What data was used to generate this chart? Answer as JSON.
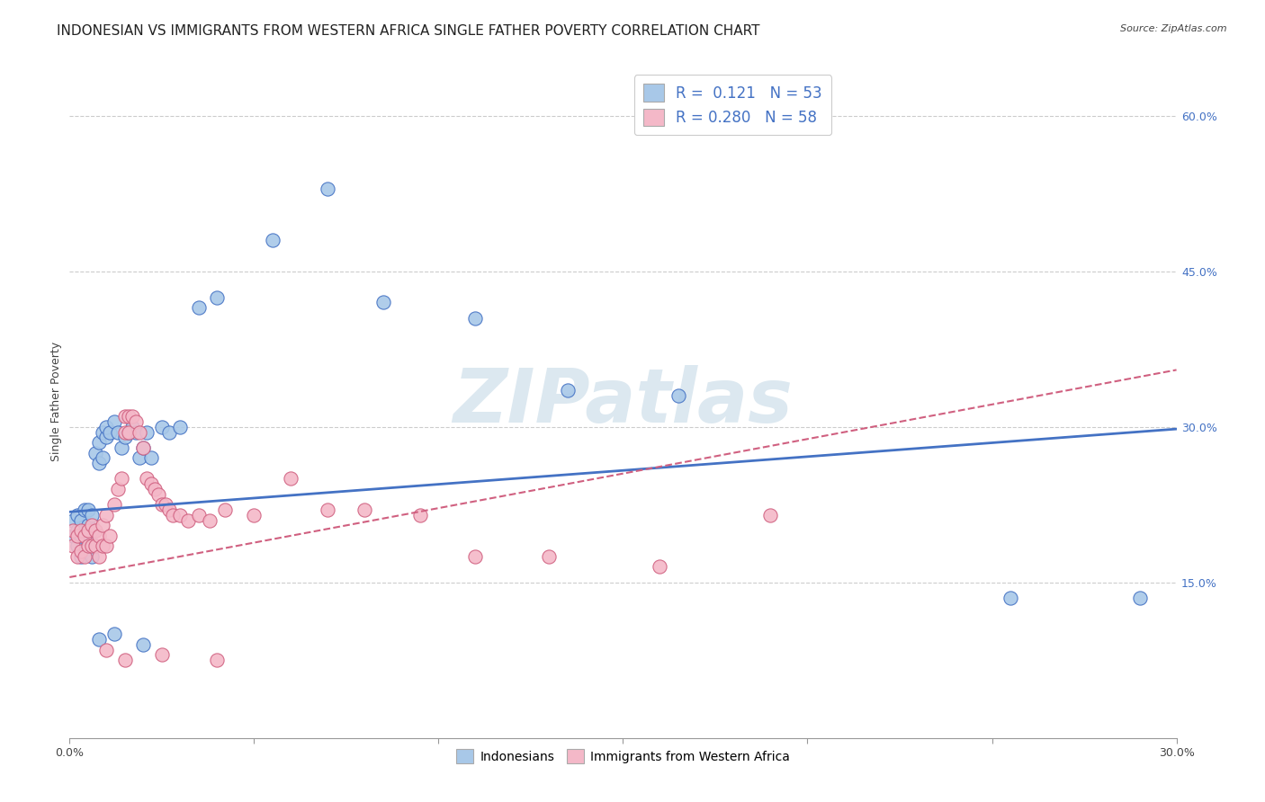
{
  "title": "INDONESIAN VS IMMIGRANTS FROM WESTERN AFRICA SINGLE FATHER POVERTY CORRELATION CHART",
  "source": "Source: ZipAtlas.com",
  "ylabel": "Single Father Poverty",
  "xlim": [
    0.0,
    0.3
  ],
  "ylim": [
    0.0,
    0.65
  ],
  "xticks": [
    0.0,
    0.05,
    0.1,
    0.15,
    0.2,
    0.25,
    0.3
  ],
  "xticklabels": [
    "0.0%",
    "",
    "",
    "",
    "",
    "",
    "30.0%"
  ],
  "yticks_right": [
    0.15,
    0.3,
    0.45,
    0.6
  ],
  "ytick_labels_right": [
    "15.0%",
    "30.0%",
    "45.0%",
    "60.0%"
  ],
  "legend_r1": "0.121",
  "legend_n1": "53",
  "legend_r2": "0.280",
  "legend_n2": "58",
  "color_indonesian": "#a8c8e8",
  "color_western_africa": "#f4b8c8",
  "color_line_indonesian": "#4472c4",
  "color_line_western_africa": "#d06080",
  "indonesian_x": [
    0.001,
    0.001,
    0.002,
    0.002,
    0.002,
    0.003,
    0.003,
    0.003,
    0.004,
    0.004,
    0.004,
    0.005,
    0.005,
    0.005,
    0.006,
    0.006,
    0.006,
    0.007,
    0.007,
    0.008,
    0.008,
    0.009,
    0.009,
    0.01,
    0.01,
    0.011,
    0.012,
    0.013,
    0.014,
    0.015,
    0.016,
    0.017,
    0.018,
    0.019,
    0.02,
    0.021,
    0.022,
    0.025,
    0.027,
    0.03,
    0.035,
    0.04,
    0.055,
    0.07,
    0.085,
    0.11,
    0.135,
    0.165,
    0.255,
    0.29,
    0.008,
    0.012,
    0.02
  ],
  "indonesian_y": [
    0.195,
    0.21,
    0.185,
    0.2,
    0.215,
    0.175,
    0.195,
    0.21,
    0.18,
    0.2,
    0.22,
    0.185,
    0.205,
    0.22,
    0.175,
    0.2,
    0.215,
    0.185,
    0.275,
    0.265,
    0.285,
    0.295,
    0.27,
    0.29,
    0.3,
    0.295,
    0.305,
    0.295,
    0.28,
    0.29,
    0.295,
    0.3,
    0.295,
    0.27,
    0.28,
    0.295,
    0.27,
    0.3,
    0.295,
    0.3,
    0.415,
    0.425,
    0.48,
    0.53,
    0.42,
    0.405,
    0.335,
    0.33,
    0.135,
    0.135,
    0.095,
    0.1,
    0.09
  ],
  "western_africa_x": [
    0.001,
    0.001,
    0.002,
    0.002,
    0.003,
    0.003,
    0.004,
    0.004,
    0.005,
    0.005,
    0.006,
    0.006,
    0.007,
    0.007,
    0.008,
    0.008,
    0.009,
    0.009,
    0.01,
    0.01,
    0.011,
    0.012,
    0.013,
    0.014,
    0.015,
    0.015,
    0.016,
    0.016,
    0.017,
    0.018,
    0.019,
    0.02,
    0.021,
    0.022,
    0.023,
    0.024,
    0.025,
    0.026,
    0.027,
    0.028,
    0.03,
    0.032,
    0.035,
    0.038,
    0.042,
    0.05,
    0.06,
    0.07,
    0.08,
    0.095,
    0.11,
    0.13,
    0.16,
    0.19,
    0.01,
    0.015,
    0.025,
    0.04
  ],
  "western_africa_y": [
    0.185,
    0.2,
    0.175,
    0.195,
    0.18,
    0.2,
    0.175,
    0.195,
    0.185,
    0.2,
    0.185,
    0.205,
    0.185,
    0.2,
    0.175,
    0.195,
    0.185,
    0.205,
    0.185,
    0.215,
    0.195,
    0.225,
    0.24,
    0.25,
    0.295,
    0.31,
    0.295,
    0.31,
    0.31,
    0.305,
    0.295,
    0.28,
    0.25,
    0.245,
    0.24,
    0.235,
    0.225,
    0.225,
    0.22,
    0.215,
    0.215,
    0.21,
    0.215,
    0.21,
    0.22,
    0.215,
    0.25,
    0.22,
    0.22,
    0.215,
    0.175,
    0.175,
    0.165,
    0.215,
    0.085,
    0.075,
    0.08,
    0.075
  ],
  "indo_line_x0": 0.0,
  "indo_line_y0": 0.218,
  "indo_line_x1": 0.3,
  "indo_line_y1": 0.298,
  "wa_line_x0": 0.0,
  "wa_line_y0": 0.155,
  "wa_line_x1": 0.3,
  "wa_line_y1": 0.355,
  "background_color": "#ffffff",
  "grid_color": "#cccccc",
  "title_fontsize": 11,
  "axis_label_fontsize": 9,
  "tick_fontsize": 9,
  "legend_upper_fontsize": 12,
  "legend_lower_fontsize": 10,
  "watermark_text": "ZIPatlas",
  "watermark_color": "#dce8f0",
  "watermark_fontsize": 60
}
